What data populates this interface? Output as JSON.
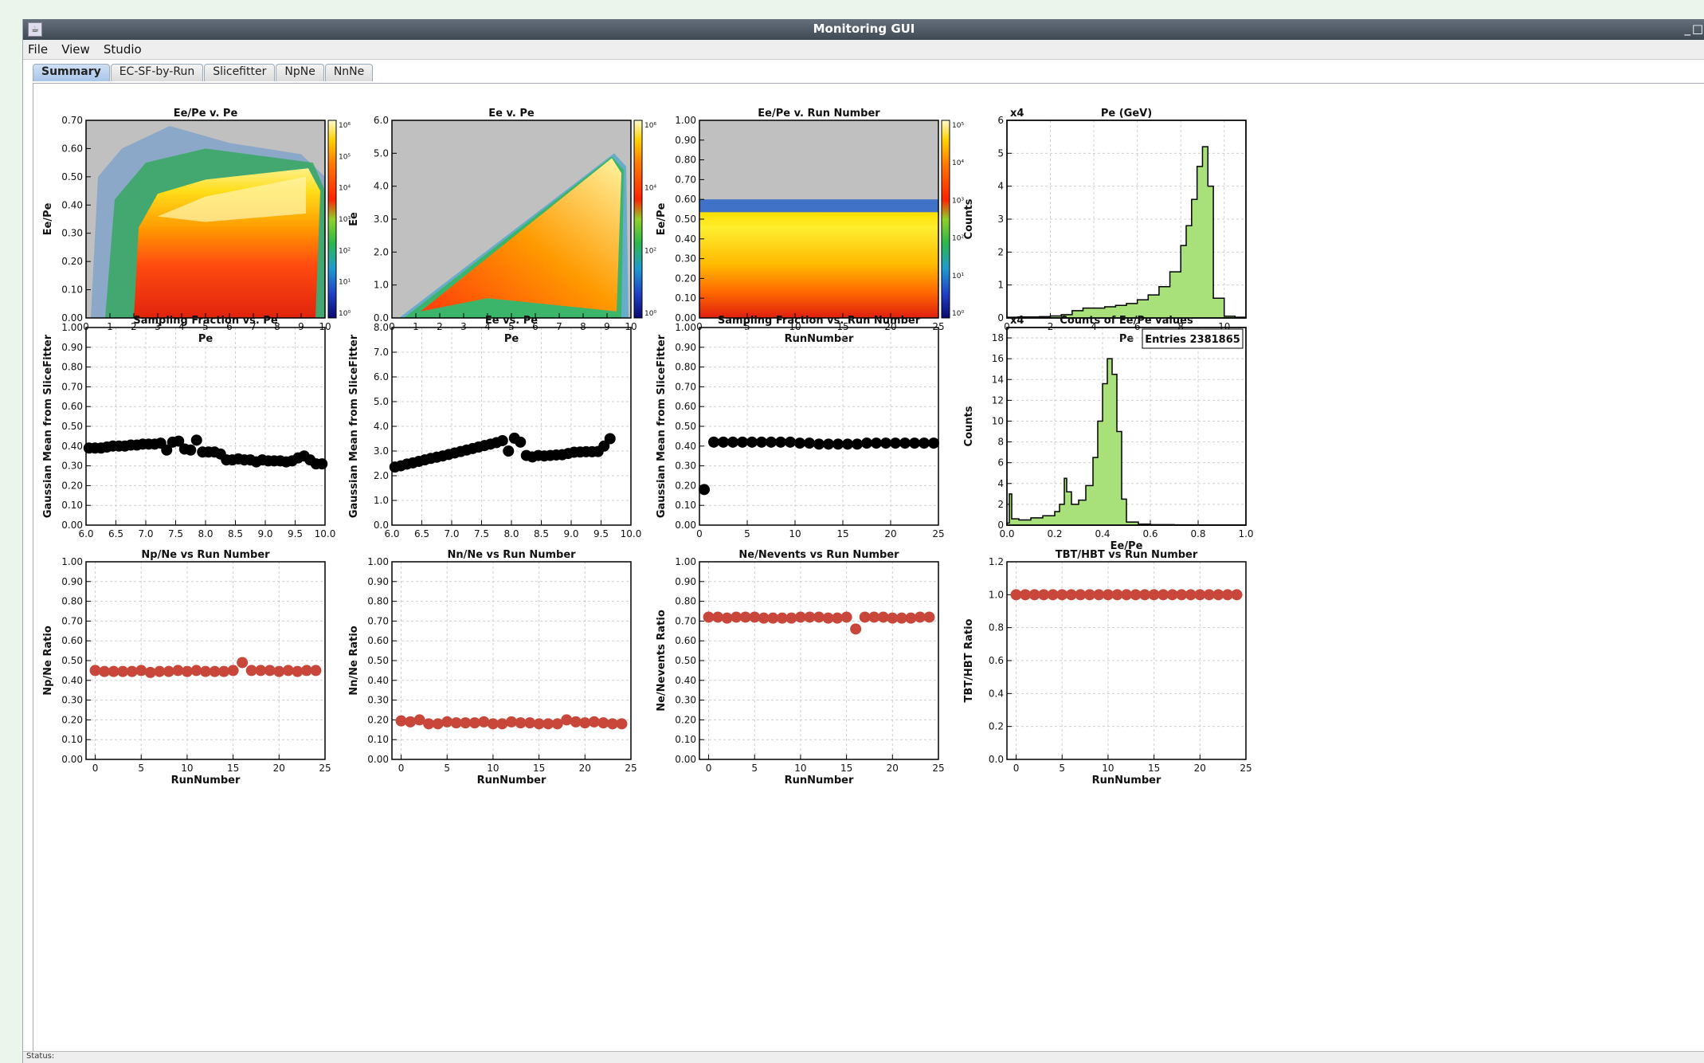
{
  "window": {
    "title": "Monitoring GUI",
    "app_icon": "java-app-icon",
    "controls": [
      "_",
      "□"
    ]
  },
  "menu": [
    "File",
    "View",
    "Studio"
  ],
  "tabs": [
    {
      "label": "Summary",
      "active": true
    },
    {
      "label": "EC-SF-by-Run",
      "active": false
    },
    {
      "label": "Slicefitter",
      "active": false
    },
    {
      "label": "NpNe",
      "active": false
    },
    {
      "label": "NnNe",
      "active": false
    }
  ],
  "status": {
    "text": "Status:"
  },
  "colors": {
    "marker_black": "#000000",
    "marker_red": "#c9473a",
    "hist_fill": "#a8e07a",
    "no_data_gray": "#c0c0c0"
  },
  "colorbar_labels": {
    "p1": [
      "10⁶",
      "10⁵",
      "10⁴",
      "10³",
      "10²",
      "10¹",
      "10⁰"
    ],
    "p2": [
      "10⁶",
      "10⁴",
      "10²",
      "10⁰"
    ],
    "p3": [
      "10⁵",
      "10⁴",
      "10³",
      "10²",
      "10¹",
      "10⁰"
    ]
  },
  "chart_data": [
    {
      "id": "p1",
      "type": "heatmap",
      "title": "Ee/Pe v. Pe",
      "xlabel": "Pe",
      "ylabel": "Ee/Pe",
      "xlim": [
        0,
        10
      ],
      "ylim": [
        0,
        0.7
      ],
      "xticks": [
        "0",
        "1",
        "2",
        "3",
        "4",
        "5",
        "6",
        "7",
        "8",
        "9",
        "10"
      ],
      "yticks": [
        "0.00",
        "0.10",
        "0.20",
        "0.30",
        "0.40",
        "0.50",
        "0.60",
        "0.70"
      ],
      "colorbar": "log"
    },
    {
      "id": "p2",
      "type": "heatmap",
      "title": "Ee v. Pe",
      "xlabel": "Pe",
      "ylabel": "Ee",
      "xlim": [
        0,
        10
      ],
      "ylim": [
        0,
        6
      ],
      "xticks": [
        "0",
        "1",
        "2",
        "3",
        "4",
        "5",
        "6",
        "7",
        "8",
        "9",
        "10"
      ],
      "yticks": [
        "0.0",
        "1.0",
        "2.0",
        "3.0",
        "4.0",
        "5.0",
        "6.0"
      ],
      "colorbar": "log"
    },
    {
      "id": "p3",
      "type": "heatmap",
      "title": "Ee/Pe v. Run Number",
      "xlabel": "RunNumber",
      "ylabel": "Ee/Pe",
      "xlim": [
        0,
        25
      ],
      "ylim": [
        0,
        1
      ],
      "xticks": [
        "0",
        "5",
        "10",
        "15",
        "20",
        "25"
      ],
      "yticks": [
        "0.00",
        "0.10",
        "0.20",
        "0.30",
        "0.40",
        "0.50",
        "0.60",
        "0.70",
        "0.80",
        "0.90",
        "1.00"
      ],
      "colorbar": "log"
    },
    {
      "id": "p4",
      "type": "bar",
      "title": "Pe (GeV)",
      "scale_label": "x4",
      "xlabel": "Pe",
      "ylabel": "Counts",
      "xlim": [
        0,
        11
      ],
      "ylim": [
        0,
        6
      ],
      "xticks": [
        "0",
        "2",
        "4",
        "6",
        "8",
        "10"
      ],
      "yticks": [
        "0",
        "1",
        "2",
        "3",
        "4",
        "5",
        "6"
      ],
      "x": [
        0,
        0.5,
        1,
        1.5,
        2,
        2.5,
        3,
        3.5,
        4,
        4.5,
        5,
        5.5,
        6,
        6.5,
        7,
        7.5,
        8,
        8.25,
        8.5,
        8.75,
        9,
        9.25,
        9.5,
        10,
        10.5,
        11
      ],
      "values": [
        0.02,
        0.03,
        0.03,
        0.04,
        0.06,
        0.1,
        0.22,
        0.3,
        0.3,
        0.34,
        0.38,
        0.44,
        0.55,
        0.7,
        0.95,
        1.4,
        2.2,
        2.8,
        3.6,
        4.6,
        5.2,
        4.0,
        0.6,
        0.05,
        0.02,
        0.02
      ]
    },
    {
      "id": "p5",
      "type": "scatter",
      "title": "Sampling Fraction vs. Pe",
      "xlabel": "",
      "ylabel": "Gaussian Mean from SliceFitter",
      "xlim": [
        6,
        10
      ],
      "ylim": [
        0,
        1
      ],
      "xticks": [
        "6.0",
        "6.5",
        "7.0",
        "7.5",
        "8.0",
        "8.5",
        "9.0",
        "9.5",
        "10.0"
      ],
      "yticks": [
        "0.00",
        "0.10",
        "0.20",
        "0.30",
        "0.40",
        "0.50",
        "0.60",
        "0.70",
        "0.80",
        "0.90",
        "1.00"
      ],
      "x": [
        6.05,
        6.15,
        6.25,
        6.35,
        6.45,
        6.55,
        6.65,
        6.75,
        6.85,
        6.95,
        7.05,
        7.15,
        7.25,
        7.35,
        7.45,
        7.55,
        7.65,
        7.75,
        7.85,
        7.95,
        8.05,
        8.15,
        8.25,
        8.35,
        8.45,
        8.55,
        8.65,
        8.75,
        8.85,
        8.95,
        9.05,
        9.15,
        9.25,
        9.35,
        9.45,
        9.55,
        9.65,
        9.75,
        9.85,
        9.95
      ],
      "values": [
        0.39,
        0.39,
        0.39,
        0.395,
        0.4,
        0.4,
        0.4,
        0.405,
        0.405,
        0.41,
        0.41,
        0.41,
        0.415,
        0.38,
        0.42,
        0.425,
        0.385,
        0.38,
        0.43,
        0.37,
        0.37,
        0.37,
        0.36,
        0.33,
        0.33,
        0.335,
        0.33,
        0.33,
        0.32,
        0.33,
        0.325,
        0.325,
        0.325,
        0.32,
        0.325,
        0.34,
        0.35,
        0.33,
        0.31,
        0.31
      ]
    },
    {
      "id": "p6",
      "type": "scatter",
      "title": "Ee vs. Pe",
      "xlabel": "",
      "ylabel": "Gaussian Mean from SliceFitter",
      "xlim": [
        6,
        10
      ],
      "ylim": [
        0,
        8
      ],
      "xticks": [
        "6.0",
        "6.5",
        "7.0",
        "7.5",
        "8.0",
        "8.5",
        "9.0",
        "9.5",
        "10.0"
      ],
      "yticks": [
        "0.0",
        "1.0",
        "2.0",
        "3.0",
        "4.0",
        "5.0",
        "6.0",
        "7.0",
        "8.0"
      ],
      "x": [
        6.05,
        6.15,
        6.25,
        6.35,
        6.45,
        6.55,
        6.65,
        6.75,
        6.85,
        6.95,
        7.05,
        7.15,
        7.25,
        7.35,
        7.45,
        7.55,
        7.65,
        7.75,
        7.85,
        7.95,
        8.05,
        8.15,
        8.25,
        8.35,
        8.45,
        8.55,
        8.65,
        8.75,
        8.85,
        8.95,
        9.05,
        9.15,
        9.25,
        9.35,
        9.45,
        9.55,
        9.65
      ],
      "values": [
        2.35,
        2.4,
        2.47,
        2.52,
        2.58,
        2.64,
        2.7,
        2.75,
        2.8,
        2.86,
        2.92,
        2.98,
        3.04,
        3.1,
        3.16,
        3.22,
        3.28,
        3.34,
        3.42,
        3.0,
        3.52,
        3.36,
        2.82,
        2.76,
        2.82,
        2.8,
        2.82,
        2.84,
        2.85,
        2.9,
        2.95,
        2.96,
        2.97,
        2.97,
        2.98,
        3.2,
        3.5
      ]
    },
    {
      "id": "p7",
      "type": "scatter",
      "title": "Sampling Fraction vs. Run Number",
      "xlabel": "",
      "ylabel": "Gaussian Mean from SliceFitter",
      "xlim": [
        0,
        25
      ],
      "ylim": [
        0,
        1
      ],
      "xticks": [
        "0",
        "5",
        "10",
        "15",
        "20",
        "25"
      ],
      "yticks": [
        "0.00",
        "0.10",
        "0.20",
        "0.30",
        "0.40",
        "0.50",
        "0.60",
        "0.70",
        "0.80",
        "0.90",
        "1.00"
      ],
      "x": [
        0.5,
        1.5,
        2.5,
        3.5,
        4.5,
        5.5,
        6.5,
        7.5,
        8.5,
        9.5,
        10.5,
        11.5,
        12.5,
        13.5,
        14.5,
        15.5,
        16.5,
        17.5,
        18.5,
        19.5,
        20.5,
        21.5,
        22.5,
        23.5,
        24.5
      ],
      "values": [
        0.18,
        0.42,
        0.42,
        0.42,
        0.42,
        0.42,
        0.42,
        0.42,
        0.42,
        0.42,
        0.415,
        0.415,
        0.41,
        0.41,
        0.41,
        0.41,
        0.41,
        0.415,
        0.415,
        0.415,
        0.415,
        0.415,
        0.415,
        0.415,
        0.415
      ]
    },
    {
      "id": "p8",
      "type": "bar",
      "title": "Counts of Ee/Pe values",
      "scale_label": "x4",
      "xlabel": "Ee/Pe",
      "ylabel": "Counts",
      "annotation": "Entries 2381865",
      "xlim": [
        0,
        1
      ],
      "ylim": [
        0,
        19
      ],
      "xticks": [
        "0.0",
        "0.2",
        "0.4",
        "0.6",
        "0.8",
        "1.0"
      ],
      "yticks": [
        "0",
        "2",
        "4",
        "6",
        "8",
        "10",
        "12",
        "14",
        "16",
        "18"
      ],
      "x": [
        0,
        0.01,
        0.02,
        0.05,
        0.1,
        0.15,
        0.2,
        0.22,
        0.24,
        0.25,
        0.27,
        0.3,
        0.33,
        0.36,
        0.38,
        0.4,
        0.42,
        0.44,
        0.46,
        0.48,
        0.5,
        0.55,
        0.6,
        0.7,
        0.8,
        0.9,
        1.0
      ],
      "values": [
        0.2,
        3.0,
        0.6,
        0.5,
        0.7,
        0.9,
        1.3,
        2.0,
        4.5,
        3.2,
        2.0,
        2.4,
        3.8,
        6.5,
        10.0,
        13.6,
        16.0,
        14.5,
        9.0,
        2.5,
        0.3,
        0.1,
        0.05,
        0.03,
        0.02,
        0.02,
        0.02
      ]
    },
    {
      "id": "p9",
      "type": "scatter",
      "title": "Np/Ne vs Run Number",
      "xlabel": "RunNumber",
      "ylabel": "Np/Ne Ratio",
      "xlim": [
        -1,
        25
      ],
      "ylim": [
        0,
        1
      ],
      "xticks": [
        "0",
        "5",
        "10",
        "15",
        "20",
        "25"
      ],
      "yticks": [
        "0.00",
        "0.10",
        "0.20",
        "0.30",
        "0.40",
        "0.50",
        "0.60",
        "0.70",
        "0.80",
        "0.90",
        "1.00"
      ],
      "x": [
        0,
        1,
        2,
        3,
        4,
        5,
        6,
        7,
        8,
        9,
        10,
        11,
        12,
        13,
        14,
        15,
        16,
        17,
        18,
        19,
        20,
        21,
        22,
        23,
        24
      ],
      "values": [
        0.45,
        0.445,
        0.445,
        0.445,
        0.445,
        0.45,
        0.44,
        0.445,
        0.445,
        0.45,
        0.445,
        0.45,
        0.445,
        0.445,
        0.445,
        0.45,
        0.49,
        0.45,
        0.45,
        0.45,
        0.445,
        0.45,
        0.445,
        0.45,
        0.45
      ]
    },
    {
      "id": "p10",
      "type": "scatter",
      "title": "Nn/Ne vs Run Number",
      "xlabel": "RunNumber",
      "ylabel": "Nn/Ne Ratio",
      "xlim": [
        -1,
        25
      ],
      "ylim": [
        0,
        1
      ],
      "xticks": [
        "0",
        "5",
        "10",
        "15",
        "20",
        "25"
      ],
      "yticks": [
        "0.00",
        "0.10",
        "0.20",
        "0.30",
        "0.40",
        "0.50",
        "0.60",
        "0.70",
        "0.80",
        "0.90",
        "1.00"
      ],
      "x": [
        0,
        1,
        2,
        3,
        4,
        5,
        6,
        7,
        8,
        9,
        10,
        11,
        12,
        13,
        14,
        15,
        16,
        17,
        18,
        19,
        20,
        21,
        22,
        23,
        24
      ],
      "values": [
        0.195,
        0.19,
        0.2,
        0.18,
        0.18,
        0.19,
        0.185,
        0.185,
        0.185,
        0.19,
        0.18,
        0.18,
        0.19,
        0.185,
        0.185,
        0.18,
        0.18,
        0.18,
        0.2,
        0.19,
        0.185,
        0.19,
        0.185,
        0.18,
        0.18
      ]
    },
    {
      "id": "p11",
      "type": "scatter",
      "title": "Ne/Nevents vs Run Number",
      "xlabel": "RunNumber",
      "ylabel": "Ne/Nevents Ratio",
      "xlim": [
        -1,
        25
      ],
      "ylim": [
        0,
        1
      ],
      "xticks": [
        "0",
        "5",
        "10",
        "15",
        "20",
        "25"
      ],
      "yticks": [
        "0.00",
        "0.10",
        "0.20",
        "0.30",
        "0.40",
        "0.50",
        "0.60",
        "0.70",
        "0.80",
        "0.90",
        "1.00"
      ],
      "x": [
        0,
        1,
        2,
        3,
        4,
        5,
        6,
        7,
        8,
        9,
        10,
        11,
        12,
        13,
        14,
        15,
        16,
        17,
        18,
        19,
        20,
        21,
        22,
        23,
        24
      ],
      "values": [
        0.72,
        0.72,
        0.715,
        0.72,
        0.72,
        0.72,
        0.715,
        0.715,
        0.715,
        0.715,
        0.72,
        0.72,
        0.72,
        0.715,
        0.715,
        0.72,
        0.66,
        0.72,
        0.72,
        0.72,
        0.715,
        0.715,
        0.715,
        0.72,
        0.72
      ]
    },
    {
      "id": "p12",
      "type": "scatter",
      "title": "TBT/HBT vs Run Number",
      "xlabel": "RunNumber",
      "ylabel": "TBT/HBT Ratio",
      "xlim": [
        -1,
        25
      ],
      "ylim": [
        0,
        1.2
      ],
      "xticks": [
        "0",
        "5",
        "10",
        "15",
        "20",
        "25"
      ],
      "yticks": [
        "0.0",
        "0.2",
        "0.4",
        "0.6",
        "0.8",
        "1.0",
        "1.2"
      ],
      "x": [
        0,
        1,
        2,
        3,
        4,
        5,
        6,
        7,
        8,
        9,
        10,
        11,
        12,
        13,
        14,
        15,
        16,
        17,
        18,
        19,
        20,
        21,
        22,
        23,
        24
      ],
      "values": [
        1.0,
        1.0,
        1.0,
        1.0,
        1.0,
        1.0,
        1.0,
        1.0,
        1.0,
        1.0,
        1.0,
        1.0,
        1.0,
        1.0,
        1.0,
        1.0,
        1.0,
        1.0,
        1.0,
        1.0,
        1.0,
        1.0,
        1.0,
        1.0,
        1.0
      ]
    }
  ]
}
